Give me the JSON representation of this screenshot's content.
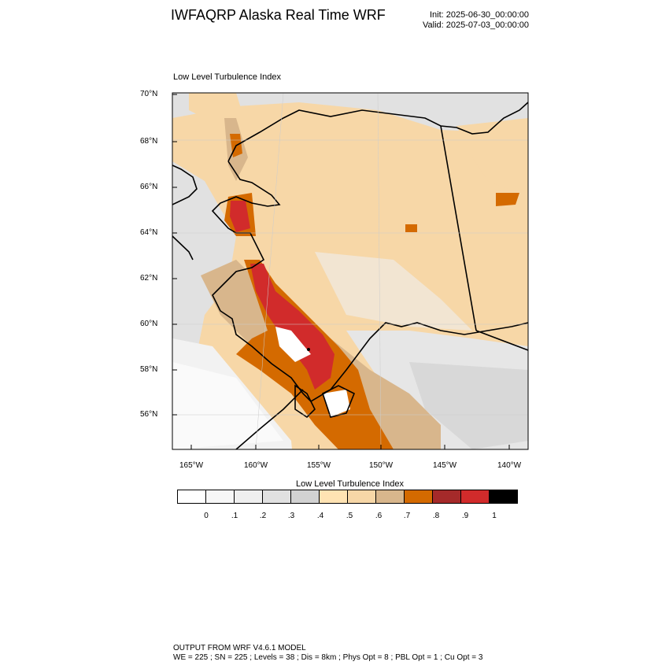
{
  "header": {
    "title": "IWFAQRP Alaska Real Time WRF",
    "init": "Init: 2025-06-30_00:00:00",
    "valid": "Valid: 2025-07-03_00:00:00"
  },
  "map": {
    "subtitle": "Low Level Turbulence Index",
    "lat_labels": [
      "70°N",
      "68°N",
      "66°N",
      "64°N",
      "62°N",
      "60°N",
      "58°N",
      "56°N"
    ],
    "lon_labels": [
      "165°W",
      "160°W",
      "155°W",
      "150°W",
      "145°W",
      "140°W"
    ]
  },
  "legend": {
    "title": "Low Level Turbulence Index",
    "colors": [
      "#ffffff",
      "#f7f7f7",
      "#efefef",
      "#e1e1e1",
      "#d2d2d2",
      "#ffe3b3",
      "#f7d7a7",
      "#d8b68c",
      "#d46a00",
      "#a52a2a",
      "#d12b2b",
      "#000000"
    ],
    "ticks": [
      "0",
      ".1",
      ".2",
      ".3",
      ".4",
      ".5",
      ".6",
      ".7",
      ".8",
      ".9",
      "1"
    ]
  },
  "footer": {
    "line1": "OUTPUT FROM WRF V4.6.1 MODEL",
    "line2": "WE = 225 ; SN = 225 ; Levels = 38 ; Dis = 8km ; Phys Opt = 8 ; PBL Opt = 1 ; Cu Opt = 3"
  }
}
